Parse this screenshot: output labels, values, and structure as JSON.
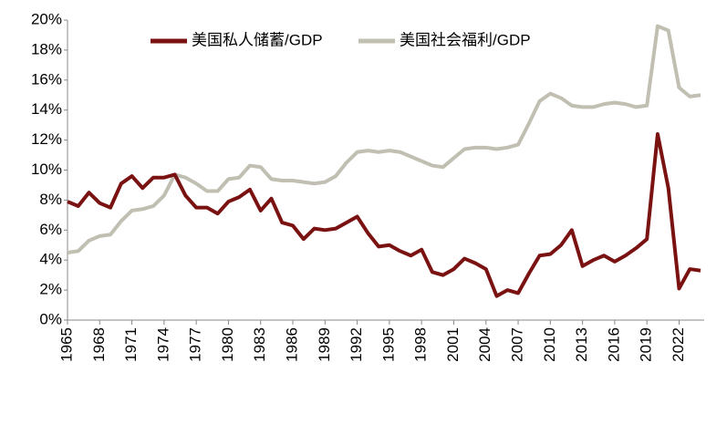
{
  "chart_data": {
    "type": "line",
    "x": [
      1965,
      1966,
      1967,
      1968,
      1969,
      1970,
      1971,
      1972,
      1973,
      1974,
      1975,
      1976,
      1977,
      1978,
      1979,
      1980,
      1981,
      1982,
      1983,
      1984,
      1985,
      1986,
      1987,
      1988,
      1989,
      1990,
      1991,
      1992,
      1993,
      1994,
      1995,
      1996,
      1997,
      1998,
      1999,
      2000,
      2001,
      2002,
      2003,
      2004,
      2005,
      2006,
      2007,
      2008,
      2009,
      2010,
      2011,
      2012,
      2013,
      2014,
      2015,
      2016,
      2017,
      2018,
      2019,
      2020,
      2021,
      2022,
      2023,
      2024
    ],
    "series": [
      {
        "name": "美国私人储蓄/GDP",
        "color": "#7a1212",
        "values": [
          7.9,
          7.6,
          8.5,
          7.8,
          7.5,
          9.1,
          9.6,
          8.8,
          9.5,
          9.5,
          9.7,
          8.3,
          7.5,
          7.5,
          7.1,
          7.9,
          8.2,
          8.7,
          7.3,
          8.1,
          6.5,
          6.3,
          5.4,
          6.1,
          6.0,
          6.1,
          6.5,
          6.9,
          5.8,
          4.9,
          5.0,
          4.6,
          4.3,
          4.7,
          3.2,
          3.0,
          3.4,
          4.1,
          3.8,
          3.4,
          1.6,
          2.0,
          1.8,
          3.1,
          4.3,
          4.4,
          5.0,
          6.0,
          3.6,
          4.0,
          4.3,
          3.9,
          4.3,
          4.8,
          5.4,
          12.4,
          8.8,
          2.1,
          3.4,
          3.3
        ]
      },
      {
        "name": "美国社会福利/GDP",
        "color": "#c0bfb2",
        "values": [
          4.5,
          4.6,
          5.3,
          5.6,
          5.7,
          6.6,
          7.3,
          7.4,
          7.6,
          8.3,
          9.7,
          9.5,
          9.1,
          8.6,
          8.6,
          9.4,
          9.5,
          10.3,
          10.2,
          9.4,
          9.3,
          9.3,
          9.2,
          9.1,
          9.2,
          9.6,
          10.5,
          11.2,
          11.3,
          11.2,
          11.3,
          11.2,
          10.9,
          10.6,
          10.3,
          10.2,
          10.8,
          11.4,
          11.5,
          11.5,
          11.4,
          11.5,
          11.7,
          13.1,
          14.6,
          15.1,
          14.8,
          14.3,
          14.2,
          14.2,
          14.4,
          14.5,
          14.4,
          14.2,
          14.3,
          19.6,
          19.3,
          15.5,
          14.9,
          15.0
        ]
      }
    ],
    "xlim": [
      1965,
      2024
    ],
    "xticks": [
      1965,
      1968,
      1971,
      1974,
      1977,
      1980,
      1983,
      1986,
      1989,
      1992,
      1995,
      1998,
      2001,
      2004,
      2007,
      2010,
      2013,
      2016,
      2019,
      2022
    ],
    "ylim": [
      0,
      20
    ],
    "yticks": [
      {
        "value": 0,
        "label": "0%"
      },
      {
        "value": 2,
        "label": "2%"
      },
      {
        "value": 4,
        "label": "4%"
      },
      {
        "value": 6,
        "label": "6%"
      },
      {
        "value": 8,
        "label": "8%"
      },
      {
        "value": 10,
        "label": "10%"
      },
      {
        "value": 12,
        "label": "12%"
      },
      {
        "value": 14,
        "label": "14%"
      },
      {
        "value": 16,
        "label": "16%"
      },
      {
        "value": 18,
        "label": "18%"
      },
      {
        "value": 20,
        "label": "20%"
      }
    ],
    "grid": false,
    "legend": "top"
  }
}
